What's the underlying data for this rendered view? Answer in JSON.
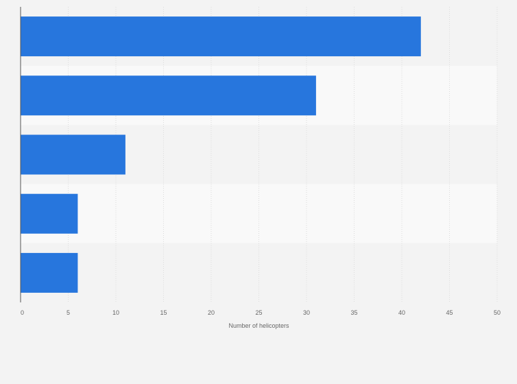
{
  "chart_data": {
    "type": "bar",
    "orientation": "horizontal",
    "categories": [
      "",
      "",
      "",
      "",
      ""
    ],
    "values": [
      42,
      31,
      11,
      6,
      6
    ],
    "title": "",
    "xlabel": "Number of helicopters",
    "ylabel": "",
    "xlim": [
      0,
      50
    ],
    "x_ticks": [
      0,
      5,
      10,
      15,
      20,
      25,
      30,
      35,
      40,
      45,
      50
    ],
    "grid": true,
    "legend": "none",
    "colors": {
      "bar": "#2776dd",
      "band_dark": "#f3f3f3",
      "band_light": "#f9f9f9",
      "grid": "#dcdcdc",
      "axis": "#555555",
      "text": "#666666"
    }
  }
}
